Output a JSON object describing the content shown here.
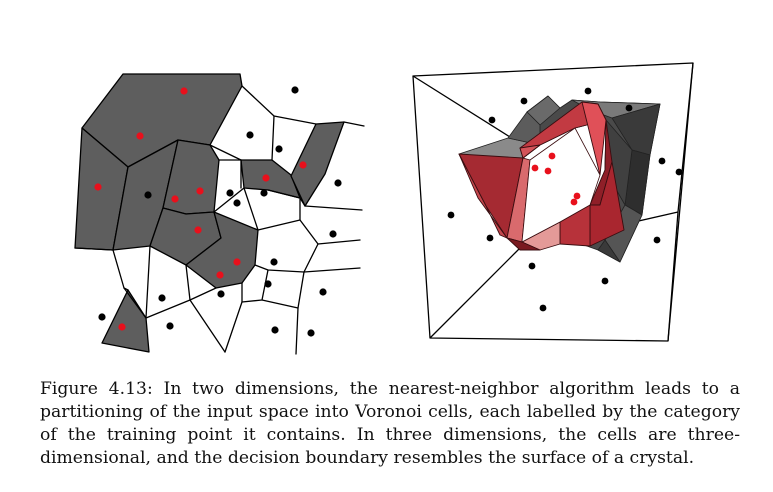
{
  "figure": {
    "label": "Figure 4.13:",
    "caption": " In two dimensions, the nearest-neighbor algorithm leads to a partitioning of the input space into Voronoi cells, each labelled by the category of the training point it contains.  In three dimensions, the cells are three-dimensional, and the decision boundary resembles the surface of a crystal."
  },
  "colors": {
    "red_point": "#e8101c",
    "black_point": "#000000",
    "gray_cell": "#5e5e5e",
    "crystal_red": "#b8323a",
    "crystal_gray": "#5a5a5a"
  },
  "panels": [
    "2d-voronoi-diagram",
    "3d-crystal-decision-boundary"
  ]
}
